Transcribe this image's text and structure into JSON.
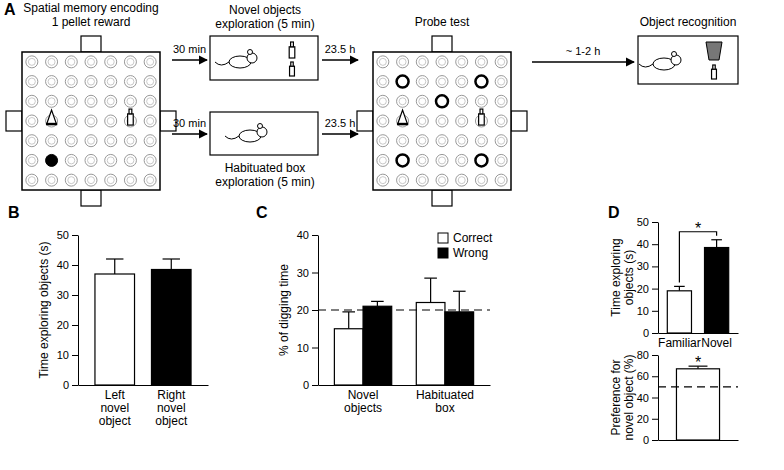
{
  "diagram": {
    "panel": "A",
    "encoding": {
      "lines": [
        "Spatial memory encoding",
        "1 pellet reward"
      ]
    },
    "novel_box": {
      "lines": [
        "Novel objects",
        "exploration (5 min)"
      ]
    },
    "habituated_box": {
      "lines": [
        "Habituated box",
        "exploration (5 min)"
      ]
    },
    "delays": [
      "30 min",
      "30 min",
      "23.5 h",
      "23.5 h",
      "~ 1-2 h"
    ],
    "probe": {
      "label": "Probe test"
    },
    "recognition": {
      "label": "Object recognition"
    }
  },
  "chart_data": [
    {
      "panel": "B",
      "type": "bar",
      "ylabel": "Time exploring objects (s)",
      "categories": [
        "Left novel object",
        "Right novel object"
      ],
      "values": [
        37,
        38.5
      ],
      "errors": [
        5,
        3.5
      ],
      "colors": [
        "#ffffff",
        "#000000"
      ],
      "ylim": [
        0,
        50
      ],
      "yticks": [
        0,
        10,
        20,
        30,
        40,
        50
      ]
    },
    {
      "panel": "C",
      "type": "bar",
      "ylabel": "% of digging time",
      "categories": [
        "Novel objects",
        "Habituated box"
      ],
      "series": [
        {
          "name": "Correct",
          "color": "#ffffff",
          "values": [
            15,
            22
          ],
          "errors": [
            4.5,
            6.5
          ]
        },
        {
          "name": "Wrong",
          "color": "#000000",
          "values": [
            21,
            19.5
          ],
          "errors": [
            1.3,
            5.5
          ]
        }
      ],
      "ylim": [
        0,
        40
      ],
      "yticks": [
        0,
        10,
        20,
        30,
        40
      ],
      "reference_line": 20,
      "legend": "upper right"
    },
    {
      "panel": "D",
      "type": "bar",
      "ylabel": "Time exploring objects (s)",
      "categories": [
        "Familiar",
        "Novel"
      ],
      "values": [
        19,
        38.5
      ],
      "errors": [
        2,
        3.5
      ],
      "colors": [
        "#ffffff",
        "#000000"
      ],
      "ylim": [
        0,
        50
      ],
      "yticks": [
        0,
        10,
        20,
        30,
        40,
        50
      ],
      "annotations": [
        "*"
      ]
    },
    {
      "type": "bar",
      "ylabel": "Preference for novel object (%)",
      "categories": [
        null
      ],
      "values": [
        67
      ],
      "errors": [
        2.5
      ],
      "color": "#ffffff",
      "ylim": [
        0,
        80
      ],
      "yticks": [
        0,
        20,
        40,
        60,
        80
      ],
      "reference_line": 50,
      "annotations": [
        "*"
      ]
    }
  ]
}
